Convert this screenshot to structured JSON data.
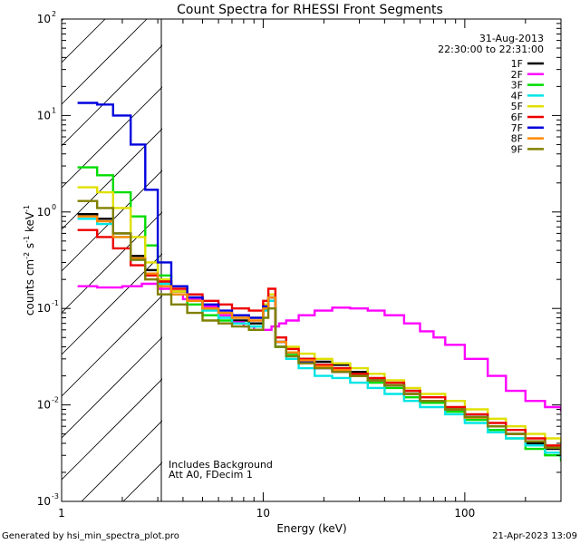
{
  "chart_data": {
    "type": "line",
    "title": "Count Spectra for RHESSI Front Segments",
    "xlabel": "Energy (keV)",
    "ylabel": "counts cm",
    "ylabel_sup1": "-2",
    "ylabel_mid": " s",
    "ylabel_sup2": "-1",
    "ylabel_end": " keV",
    "ylabel_sup3": "-1",
    "x_scale": "log",
    "y_scale": "log",
    "xlim": [
      1,
      300
    ],
    "ylim": [
      0.001,
      100
    ],
    "x_ticks": [
      {
        "value": 1,
        "label": "1"
      },
      {
        "value": 10,
        "label": "10"
      },
      {
        "value": 100,
        "label": "100"
      }
    ],
    "y_ticks": [
      {
        "value": 0.001,
        "base": "10",
        "exp": "-3"
      },
      {
        "value": 0.01,
        "base": "10",
        "exp": "-2"
      },
      {
        "value": 0.1,
        "base": "10",
        "exp": "-1"
      },
      {
        "value": 1,
        "base": "10",
        "exp": "0"
      },
      {
        "value": 10,
        "base": "10",
        "exp": "1"
      },
      {
        "value": 100,
        "base": "10",
        "exp": "2"
      }
    ],
    "hatched_region": [
      1,
      3
    ],
    "annotations": {
      "date": "31-Aug-2013",
      "time_range": "22:30:00 to 22:31:00",
      "note1": "Includes Background",
      "note2": "Att A0, FDecim 1"
    },
    "series": [
      {
        "name": "1F",
        "color": "#000000",
        "x": [
          1.2,
          1.5,
          1.8,
          2.2,
          2.6,
          3.0,
          3.5,
          4.2,
          5.0,
          6.0,
          7.0,
          8.5,
          10.0,
          10.6,
          11.5,
          13,
          15,
          18,
          22,
          27,
          33,
          40,
          50,
          60,
          80,
          100,
          130,
          160,
          200,
          250,
          300
        ],
        "y": [
          0.95,
          0.85,
          0.6,
          0.35,
          0.25,
          0.19,
          0.15,
          0.13,
          0.1,
          0.085,
          0.075,
          0.07,
          0.1,
          0.13,
          0.045,
          0.035,
          0.03,
          0.028,
          0.026,
          0.022,
          0.018,
          0.016,
          0.014,
          0.011,
          0.009,
          0.0075,
          0.006,
          0.005,
          0.004,
          0.0035,
          0.0028
        ]
      },
      {
        "name": "2F",
        "color": "#ff00ff",
        "x": [
          1.2,
          1.5,
          2.0,
          2.5,
          3.0,
          3.5,
          4.0,
          5.0,
          6.0,
          7.0,
          8.0,
          9.0,
          10.0,
          11.0,
          12.0,
          13,
          15,
          18,
          22,
          27,
          33,
          40,
          50,
          60,
          70,
          80,
          100,
          130,
          160,
          200,
          250,
          300
        ],
        "y": [
          0.17,
          0.165,
          0.17,
          0.18,
          0.16,
          0.14,
          0.125,
          0.105,
          0.085,
          0.072,
          0.065,
          0.06,
          0.06,
          0.065,
          0.07,
          0.075,
          0.085,
          0.095,
          0.102,
          0.1,
          0.095,
          0.085,
          0.07,
          0.058,
          0.05,
          0.042,
          0.03,
          0.02,
          0.014,
          0.011,
          0.0095,
          0.0085
        ]
      },
      {
        "name": "3F",
        "color": "#00dd00",
        "x": [
          1.2,
          1.5,
          1.8,
          2.2,
          2.6,
          3.0,
          3.5,
          4.2,
          5.0,
          6.0,
          7.0,
          8.5,
          10.0,
          10.6,
          11.5,
          13,
          15,
          18,
          22,
          27,
          33,
          40,
          50,
          60,
          80,
          100,
          130,
          160,
          200,
          250,
          300
        ],
        "y": [
          2.9,
          2.4,
          1.6,
          0.9,
          0.45,
          0.22,
          0.14,
          0.11,
          0.085,
          0.075,
          0.07,
          0.065,
          0.1,
          0.12,
          0.04,
          0.033,
          0.028,
          0.025,
          0.023,
          0.02,
          0.017,
          0.015,
          0.012,
          0.0105,
          0.0085,
          0.007,
          0.0055,
          0.0045,
          0.0035,
          0.003,
          0.0026
        ]
      },
      {
        "name": "4F",
        "color": "#00e5e5",
        "x": [
          1.2,
          1.5,
          1.8,
          2.2,
          2.6,
          3.0,
          3.5,
          4.2,
          5.0,
          6.0,
          7.0,
          8.5,
          10.0,
          10.6,
          11.5,
          13,
          15,
          18,
          22,
          27,
          33,
          40,
          50,
          60,
          80,
          100,
          130,
          160,
          200,
          250,
          300
        ],
        "y": [
          0.85,
          0.75,
          0.55,
          0.32,
          0.22,
          0.18,
          0.14,
          0.12,
          0.095,
          0.08,
          0.07,
          0.065,
          0.095,
          0.12,
          0.04,
          0.03,
          0.024,
          0.02,
          0.019,
          0.017,
          0.015,
          0.013,
          0.011,
          0.0095,
          0.008,
          0.0065,
          0.0052,
          0.0045,
          0.0038,
          0.0032,
          0.0028
        ]
      },
      {
        "name": "5F",
        "color": "#e0e000",
        "x": [
          1.2,
          1.5,
          1.8,
          2.2,
          2.6,
          3.0,
          3.5,
          4.2,
          5.0,
          6.0,
          7.0,
          8.5,
          10.0,
          10.6,
          11.5,
          13,
          15,
          18,
          22,
          27,
          33,
          40,
          50,
          60,
          80,
          100,
          130,
          160,
          200,
          250,
          300
        ],
        "y": [
          1.8,
          1.6,
          1.1,
          0.55,
          0.3,
          0.2,
          0.15,
          0.12,
          0.1,
          0.09,
          0.085,
          0.08,
          0.11,
          0.14,
          0.05,
          0.04,
          0.034,
          0.03,
          0.027,
          0.024,
          0.021,
          0.018,
          0.015,
          0.013,
          0.011,
          0.009,
          0.0072,
          0.006,
          0.005,
          0.0045,
          0.004
        ]
      },
      {
        "name": "6F",
        "color": "#ee0000",
        "x": [
          1.2,
          1.5,
          1.8,
          2.2,
          2.6,
          3.0,
          3.5,
          4.2,
          5.0,
          6.0,
          7.0,
          8.5,
          10.0,
          10.6,
          11.5,
          13,
          15,
          18,
          22,
          27,
          33,
          40,
          50,
          60,
          80,
          100,
          130,
          160,
          200,
          250,
          300
        ],
        "y": [
          0.65,
          0.55,
          0.42,
          0.28,
          0.22,
          0.19,
          0.16,
          0.14,
          0.12,
          0.11,
          0.1,
          0.095,
          0.12,
          0.16,
          0.05,
          0.038,
          0.03,
          0.026,
          0.024,
          0.021,
          0.019,
          0.017,
          0.014,
          0.012,
          0.0095,
          0.008,
          0.0065,
          0.0055,
          0.0045,
          0.0038,
          0.0032
        ]
      },
      {
        "name": "7F",
        "color": "#0000dd",
        "x": [
          1.2,
          1.5,
          1.8,
          2.2,
          2.6,
          3.0,
          3.5,
          4.2,
          5.0,
          6.0,
          7.0,
          8.5,
          10.0,
          10.6,
          11.5,
          13,
          15,
          18,
          22,
          27,
          33,
          40,
          50,
          60,
          80,
          100,
          130,
          160,
          200,
          250,
          300
        ],
        "y": [
          13.5,
          13.0,
          10.0,
          5.0,
          1.7,
          0.3,
          0.17,
          0.13,
          0.11,
          0.095,
          0.085,
          0.08,
          0.105,
          0.13,
          0.045,
          0.035,
          0.028,
          0.024,
          0.022,
          0.02,
          0.018,
          0.016,
          0.013,
          0.011,
          0.009,
          0.0075,
          0.006,
          0.005,
          0.0042,
          0.0036,
          0.003
        ]
      },
      {
        "name": "8F",
        "color": "#ff8800",
        "x": [
          1.2,
          1.5,
          1.8,
          2.2,
          2.6,
          3.0,
          3.5,
          4.2,
          5.0,
          6.0,
          7.0,
          8.5,
          10.0,
          10.6,
          11.5,
          13,
          15,
          18,
          22,
          27,
          33,
          40,
          50,
          60,
          80,
          100,
          130,
          160,
          200,
          250,
          300
        ],
        "y": [
          0.9,
          0.8,
          0.55,
          0.33,
          0.23,
          0.17,
          0.14,
          0.12,
          0.1,
          0.09,
          0.08,
          0.075,
          0.1,
          0.13,
          0.045,
          0.035,
          0.029,
          0.025,
          0.023,
          0.02,
          0.018,
          0.016,
          0.013,
          0.011,
          0.009,
          0.0074,
          0.006,
          0.005,
          0.0042,
          0.0036,
          0.003
        ]
      },
      {
        "name": "9F",
        "color": "#808000",
        "x": [
          1.2,
          1.5,
          1.8,
          2.2,
          2.6,
          3.0,
          3.5,
          4.2,
          5.0,
          6.0,
          7.0,
          8.5,
          10.0,
          10.6,
          11.5,
          13,
          15,
          18,
          22,
          27,
          33,
          40,
          50,
          60,
          80,
          100,
          130,
          160,
          200,
          250,
          300
        ],
        "y": [
          1.3,
          1.1,
          0.6,
          0.32,
          0.2,
          0.14,
          0.11,
          0.09,
          0.075,
          0.07,
          0.065,
          0.06,
          0.08,
          0.1,
          0.04,
          0.032,
          0.027,
          0.024,
          0.022,
          0.02,
          0.018,
          0.016,
          0.013,
          0.011,
          0.009,
          0.0075,
          0.006,
          0.005,
          0.0042,
          0.0036,
          0.003
        ]
      }
    ]
  },
  "footer": {
    "generator": "Generated by hsi_min_spectra_plot.pro",
    "timestamp": "21-Apr-2023 13:09"
  }
}
